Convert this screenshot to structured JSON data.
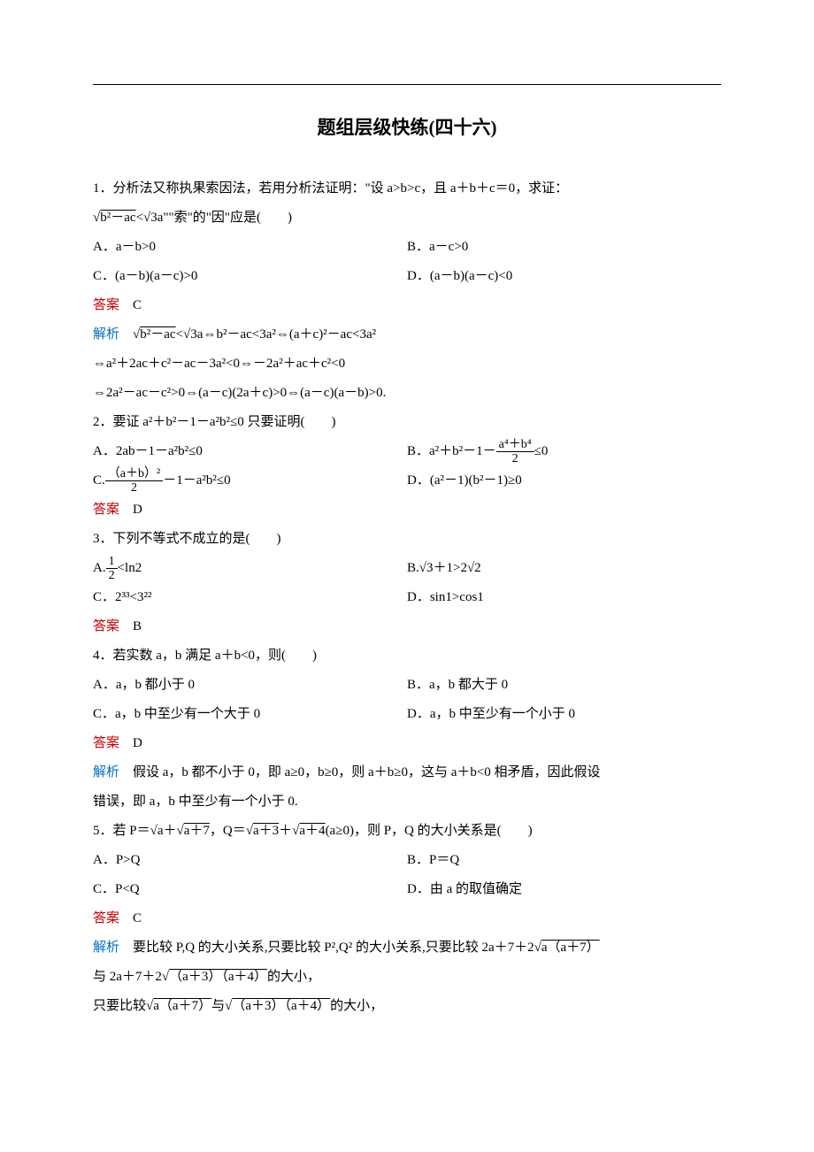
{
  "title": "题组层级快练(四十六)",
  "colors": {
    "answer": "#c00000",
    "analysis": "#0070c0",
    "text": "#000000",
    "bg": "#ffffff"
  },
  "labels": {
    "answer": "答案",
    "analysis": "解析"
  },
  "q1": {
    "stem_a": "1．分析法又称执果索因法，若用分析法证明：\"设 a>b>c，且 a＋b＋c＝0，求证：",
    "stem_b": "\"\"索\"的\"因\"应是(　　)",
    "sqrt1_inner": "b²－ac",
    "lt": "<",
    "sqrt2_coef": "√3",
    "sqrt2_rhs": "a",
    "A": "A．a－b>0",
    "B": "B．a－c>0",
    "C": "C．(a－b)(a－c)>0",
    "D": "D．(a－b)(a－c)<0",
    "ans": "　C",
    "ana1_a": "⇔b²－ac<3a²⇔(a＋c)²－ac<3a²",
    "ana2": "⇔a²＋2ac＋c²－ac－3a²<0⇔－2a²＋ac＋c²<0",
    "ana3": "⇔2a²－ac－c²>0⇔(a－c)(2a＋c)>0⇔(a－c)(a－b)>0."
  },
  "q2": {
    "stem": "2．要证 a²＋b²－1－a²b²≤0 只要证明(　　)",
    "A": "A．2ab－1－a²b²≤0",
    "B_pre": "B．a²＋b²－1－",
    "B_num": "a⁴＋b⁴",
    "B_den": "2",
    "B_post": "≤0",
    "C_pre": "C.",
    "C_num": "（a＋b）²",
    "C_den": "2",
    "C_post": "－1－a²b²≤0",
    "D": "D．(a²－1)(b²－1)≥0",
    "ans": "　D"
  },
  "q3": {
    "stem": "3．下列不等式不成立的是(　　)",
    "A_pre": "A.",
    "A_num": "1",
    "A_den": "2",
    "A_post": "<ln2",
    "B": "B.√3＋1>2√2",
    "C": "C．2³³<3²²",
    "D": "D．sin1>cos1",
    "ans": "　B"
  },
  "q4": {
    "stem": "4．若实数 a，b 满足 a＋b<0，则(　　)",
    "A": "A．a，b 都小于 0",
    "B": "B．a，b 都大于 0",
    "C": "C．a，b 中至少有一个大于 0",
    "D": "D．a，b 中至少有一个小于 0",
    "ans": "　D",
    "ana1": "　假设 a，b 都不小于 0，即 a≥0，b≥0，则 a＋b≥0，这与 a＋b<0 相矛盾，因此假设",
    "ana2": "错误，即 a，b 中至少有一个小于 0."
  },
  "q5": {
    "stem_a": "5．若 P＝√a＋",
    "stem_sqrt1": "a＋7",
    "stem_b": "，Q＝",
    "stem_sqrt2": "a＋3",
    "stem_c": "＋",
    "stem_sqrt3": "a＋4",
    "stem_d": "(a≥0)，则 P，Q 的大小关系是(　　)",
    "A": "A．P>Q",
    "B": "B．P＝Q",
    "C": "C．P<Q",
    "D": "D．由 a 的取值确定",
    "ans": "　C",
    "ana1_a": "　要比较 P,Q 的大小关系,只要比较 P²,Q² 的大小关系,只要比较 2a＋7＋2",
    "ana1_sqrt": "a（a＋7）",
    "ana2_a": "与 2a＋7＋2",
    "ana2_sqrt": "（a＋3）（a＋4）",
    "ana2_b": "的大小，",
    "ana3_a": "只要比较",
    "ana3_sqrt1": "a（a＋7）",
    "ana3_b": "与",
    "ana3_sqrt2": "（a＋3）（a＋4）",
    "ana3_c": "的大小，"
  }
}
